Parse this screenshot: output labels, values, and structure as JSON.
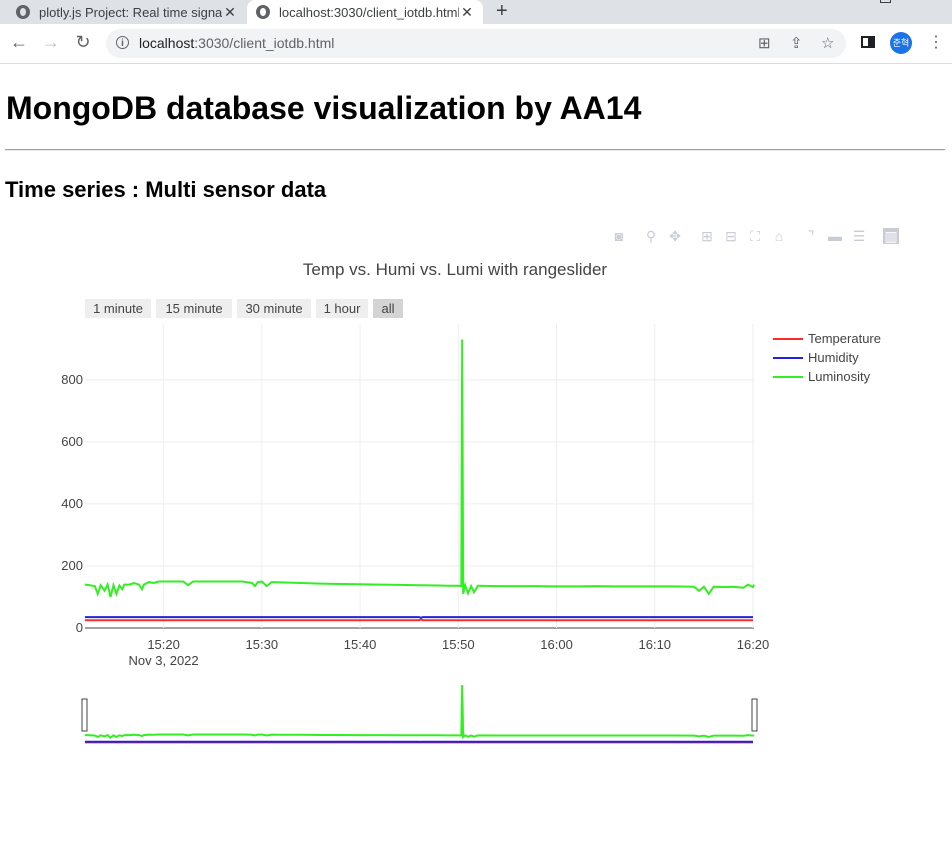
{
  "browser": {
    "tabs": [
      {
        "title": "plotly.js Project: Real time signal"
      },
      {
        "title": "localhost:3030/client_iotdb.html"
      }
    ],
    "url_host": "localhost",
    "url_rest": ":3030/client_iotdb.html",
    "profile_initials": "준혁"
  },
  "page": {
    "title": "MongoDB database visualization by AA14",
    "subtitle": "Time series : Multi sensor data"
  },
  "modebar": [
    "camera-icon",
    "zoom-icon",
    "pan-icon",
    "zoom-in-icon",
    "zoom-out-icon",
    "autoscale-icon",
    "reset-axes-icon",
    "spike-lines-icon",
    "hover-closest-icon",
    "hover-compare-icon",
    "plotly-logo-icon"
  ],
  "chart_data": {
    "type": "line",
    "title": "Temp vs. Humi vs. Lumi with rangeslider",
    "range_buttons": [
      "1 minute",
      "15 minute",
      "30 minute",
      "1 hour",
      "all"
    ],
    "active_range_button": "all",
    "x_start": "2022-11-03 15:12",
    "x_end": "2022-11-03 16:20",
    "x_ticks": [
      {
        "label": "15:20",
        "minute": 20,
        "sub": "Nov 3, 2022"
      },
      {
        "label": "15:30",
        "minute": 30
      },
      {
        "label": "15:40",
        "minute": 40
      },
      {
        "label": "15:50",
        "minute": 50
      },
      {
        "label": "16:00",
        "minute": 60
      },
      {
        "label": "16:10",
        "minute": 70
      },
      {
        "label": "16:20",
        "minute": 80
      }
    ],
    "x_min_minute": 12,
    "x_max_minute": 80.1,
    "y_ticks": [
      0,
      200,
      400,
      600,
      800
    ],
    "ylim": [
      0,
      980
    ],
    "legend_position": "top-right",
    "series": [
      {
        "name": "Temperature",
        "color": "#ff2b2b",
        "points": [
          [
            12,
            25
          ],
          [
            46,
            25
          ],
          [
            46.2,
            27
          ],
          [
            46.4,
            25
          ],
          [
            80,
            25
          ]
        ]
      },
      {
        "name": "Humidity",
        "color": "#2222dd",
        "points": [
          [
            12,
            35
          ],
          [
            46,
            35
          ],
          [
            46.2,
            33
          ],
          [
            46.4,
            35
          ],
          [
            80,
            35
          ]
        ]
      },
      {
        "name": "Luminosity",
        "color": "#33ee22",
        "points": [
          [
            12,
            140
          ],
          [
            12.5,
            138
          ],
          [
            13,
            135
          ],
          [
            13.3,
            110
          ],
          [
            13.6,
            138
          ],
          [
            14,
            120
          ],
          [
            14.3,
            140
          ],
          [
            14.6,
            100
          ],
          [
            14.9,
            138
          ],
          [
            15.2,
            110
          ],
          [
            15.5,
            137
          ],
          [
            15.8,
            125
          ],
          [
            16,
            140
          ],
          [
            16.5,
            140
          ],
          [
            17,
            145
          ],
          [
            17.5,
            140
          ],
          [
            17.8,
            125
          ],
          [
            18,
            140
          ],
          [
            18.5,
            148
          ],
          [
            19,
            145
          ],
          [
            19.5,
            150
          ],
          [
            20,
            150
          ],
          [
            21,
            150
          ],
          [
            22,
            150
          ],
          [
            22.5,
            138
          ],
          [
            23,
            150
          ],
          [
            24,
            150
          ],
          [
            25,
            150
          ],
          [
            26,
            150
          ],
          [
            27,
            150
          ],
          [
            28,
            150
          ],
          [
            29,
            145
          ],
          [
            29.3,
            135
          ],
          [
            29.6,
            148
          ],
          [
            30,
            150
          ],
          [
            30.5,
            135
          ],
          [
            31,
            148
          ],
          [
            32,
            147
          ],
          [
            34,
            145
          ],
          [
            36,
            143
          ],
          [
            38,
            142
          ],
          [
            40,
            141
          ],
          [
            42,
            140
          ],
          [
            44,
            139
          ],
          [
            46,
            138
          ],
          [
            48,
            137
          ],
          [
            49,
            136
          ],
          [
            50,
            136
          ],
          [
            50.3,
            135
          ],
          [
            50.4,
            930
          ],
          [
            50.5,
            110
          ],
          [
            50.7,
            138
          ],
          [
            51,
            112
          ],
          [
            51.3,
            135
          ],
          [
            51.6,
            115
          ],
          [
            52,
            136
          ],
          [
            54,
            135
          ],
          [
            56,
            135
          ],
          [
            58,
            135
          ],
          [
            60,
            134
          ],
          [
            62,
            134
          ],
          [
            64,
            135
          ],
          [
            66,
            134
          ],
          [
            68,
            134
          ],
          [
            70,
            134
          ],
          [
            72,
            134
          ],
          [
            74,
            133
          ],
          [
            74.5,
            120
          ],
          [
            75,
            133
          ],
          [
            75.5,
            110
          ],
          [
            76,
            133
          ],
          [
            77,
            132
          ],
          [
            78,
            133
          ],
          [
            79,
            130
          ],
          [
            79.5,
            140
          ],
          [
            80,
            132
          ],
          [
            80.1,
            140
          ]
        ]
      }
    ]
  }
}
